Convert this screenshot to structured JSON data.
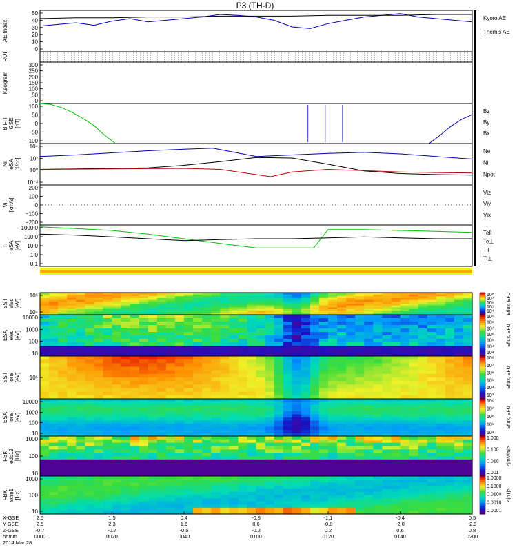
{
  "title": "P3 (TH-D)",
  "footer": {
    "row_labels": [
      "X-GSE",
      "Y-GSE",
      "Z-GSE",
      "hhmm",
      "2014 Mar 28"
    ],
    "ticks": [
      {
        "x": "2.5",
        "y": "2.5",
        "z": "-0.7",
        "t": "0000"
      },
      {
        "x": "1.5",
        "y": "2.3",
        "z": "-0.7",
        "t": "0020"
      },
      {
        "x": "0.4",
        "y": "1.6",
        "z": "-0.5",
        "t": "0040"
      },
      {
        "x": "-0.8",
        "y": "0.6",
        "z": "-0.2",
        "t": "0100"
      },
      {
        "x": "-1.1",
        "y": "-0.8",
        "z": "0.2",
        "t": "0120"
      },
      {
        "x": "-0.4",
        "y": "-2.0",
        "z": "0.6",
        "t": "0140"
      },
      {
        "x": "0.5",
        "y": "-2.9",
        "z": "0.8",
        "t": "0200"
      }
    ]
  },
  "panels": [
    {
      "id": "ae",
      "ylabel": [
        "AE Index"
      ],
      "yticks": [
        "50",
        "40",
        "30",
        "20",
        "10",
        "0"
      ],
      "legend": [
        {
          "text": "Kyoto AE",
          "color": "#0000b0"
        },
        {
          "text": "Themis AE",
          "color": "#000000"
        }
      ]
    },
    {
      "id": "roi",
      "ylabel": [
        "ROI"
      ],
      "yticks": [],
      "legend": []
    },
    {
      "id": "keogram",
      "ylabel": [
        "Keogram"
      ],
      "yticks": [
        "300",
        "250",
        "200",
        "150",
        "100",
        "50",
        "0"
      ],
      "legend": []
    },
    {
      "id": "bfit",
      "ylabel": [
        "B FIT",
        "GSE",
        "[nT]"
      ],
      "yticks": [
        "100",
        "50",
        "0",
        "−50",
        "−100"
      ],
      "legend": [
        {
          "text": "Bz",
          "color": "#c00000"
        },
        {
          "text": "By",
          "color": "#00c000"
        },
        {
          "text": "Bx",
          "color": "#0000b0"
        }
      ]
    },
    {
      "id": "ni",
      "ylabel": [
        "Ni",
        "eSA",
        "[1/cc]"
      ],
      "yticks": [
        "10⁴",
        "10²",
        "10⁰",
        "10⁻²"
      ],
      "legend": [
        {
          "text": "Ne",
          "color": "#c00000"
        },
        {
          "text": "Ni",
          "color": "#000000"
        },
        {
          "text": "Npot",
          "color": "#0000b0"
        }
      ]
    },
    {
      "id": "vi",
      "ylabel": [
        "Vi",
        "[km/s]"
      ],
      "yticks": [
        "200",
        "100",
        "0",
        "−100",
        "−200"
      ],
      "legend": [
        {
          "text": "Viz",
          "color": "#c00000"
        },
        {
          "text": "Viy",
          "color": "#00c000"
        },
        {
          "text": "Vix",
          "color": "#0000b0"
        }
      ]
    },
    {
      "id": "ti",
      "ylabel": [
        "Ti",
        "eSA",
        "[eV]"
      ],
      "yticks": [
        "1000.0",
        "100.0",
        "10.0",
        "1.0",
        "0.1"
      ],
      "legend": [
        {
          "text": "Tell",
          "color": "#000000"
        },
        {
          "text": "Te⊥",
          "color": "#c00000"
        },
        {
          "text": "Til",
          "color": "#00c000"
        },
        {
          "text": "Ti⊥",
          "color": "#0000b0"
        }
      ]
    },
    {
      "id": "sste",
      "ylabel": [
        "SST",
        "elec",
        "[eV]"
      ],
      "yticks": [
        "10⁵",
        "10⁴"
      ],
      "cbar": {
        "label": "Eflux, EFU",
        "ticks": [
          "10⁸",
          "10⁷",
          "10⁶",
          "10⁵",
          "10⁴"
        ]
      }
    },
    {
      "id": "esae",
      "ylabel": [
        "ESA",
        "elec",
        "[eV]"
      ],
      "yticks": [
        "10000",
        "1000",
        "100",
        "10"
      ],
      "cbar": {
        "label": "Eflux, EFU",
        "ticks": [
          "10⁹",
          "10⁸",
          "10⁷",
          "10⁶",
          "10⁵",
          "10⁴",
          "10³"
        ]
      }
    },
    {
      "id": "ssti",
      "ylabel": [
        "SST",
        "ions",
        "[eV]"
      ],
      "yticks": [
        "10⁵"
      ],
      "cbar": {
        "label": "Eflux, EFU",
        "ticks": [
          "10⁸",
          "10⁷",
          "10⁶",
          "10⁵",
          "10⁴",
          "10³"
        ]
      }
    },
    {
      "id": "esai",
      "ylabel": [
        "ESA",
        "ions",
        "[eV]"
      ],
      "yticks": [
        "10000",
        "1000",
        "100",
        "10"
      ],
      "cbar": {
        "label": "Eflux, EFU",
        "ticks": [
          "10⁸",
          "10⁷",
          "10⁶",
          "10⁵",
          "10⁴"
        ]
      }
    },
    {
      "id": "fbke",
      "ylabel": [
        "FBK",
        "edc12",
        "[Hz]"
      ],
      "yticks": [
        "1000",
        "100",
        "10"
      ],
      "cbar": {
        "label": "<|mV/m|>",
        "ticks": [
          "1.000",
          "0.100",
          "0.010",
          "0.001"
        ]
      }
    },
    {
      "id": "fbkb",
      "ylabel": [
        "FBK",
        "scm1",
        "[Hz]"
      ],
      "yticks": [
        "1000",
        "100",
        "10"
      ],
      "cbar": {
        "label": "<|nT|>",
        "ticks": [
          "1.0000",
          "0.1000",
          "0.0100",
          "0.0010",
          "0.0001"
        ]
      }
    }
  ],
  "chart_data": {
    "type": "line",
    "title": "P3 (TH-D)",
    "x_ticks": [
      "0000",
      "0020",
      "0040",
      "0100",
      "0120",
      "0140",
      "0200"
    ],
    "xlim_minutes": [
      0,
      120
    ],
    "series": [
      {
        "panel": "ae",
        "name": "Kyoto AE",
        "color": "#0000b0",
        "x": [
          0,
          5,
          10,
          15,
          20,
          25,
          30,
          35,
          40,
          45,
          50,
          55,
          60,
          65,
          70,
          75,
          80,
          85,
          90,
          95,
          100,
          105,
          110,
          115,
          120
        ],
        "y": [
          31,
          33,
          35,
          32,
          37,
          40,
          36,
          38,
          40,
          42,
          45,
          44,
          42,
          38,
          30,
          28,
          34,
          38,
          42,
          44,
          46,
          42,
          40,
          38,
          36
        ]
      },
      {
        "panel": "ae",
        "name": "Themis AE",
        "color": "#000000",
        "x": [
          0,
          10,
          20,
          30,
          40,
          50,
          60,
          70,
          80,
          90,
          100,
          110,
          120
        ],
        "y": [
          40,
          41,
          41,
          42,
          42,
          43,
          43,
          43,
          44,
          44,
          44,
          45,
          45
        ]
      },
      {
        "panel": "bfit",
        "name": "By",
        "color": "#00c000",
        "x": [
          0,
          3,
          6,
          9,
          12,
          15,
          18,
          21
        ],
        "y": [
          100,
          95,
          80,
          55,
          25,
          -10,
          -60,
          -100
        ]
      },
      {
        "panel": "bfit",
        "name": "Bx",
        "color": "#0000b0",
        "x": [
          108,
          111,
          114,
          117,
          120
        ],
        "y": [
          -100,
          -60,
          -15,
          20,
          45
        ]
      },
      {
        "panel": "ni",
        "name": "Npot",
        "color": "#0000b0",
        "x": [
          0,
          10,
          20,
          30,
          40,
          48,
          60,
          70,
          80,
          90,
          100,
          110,
          120
        ],
        "y": [
          2.5,
          2.8,
          3.2,
          3.6,
          3.9,
          4.1,
          2.5,
          2.8,
          3.1,
          3.3,
          3.0,
          2.5,
          2.0
        ]
      },
      {
        "panel": "ni",
        "name": "Ni",
        "color": "#000000",
        "x": [
          0,
          10,
          20,
          30,
          40,
          50,
          60,
          70,
          80,
          90,
          100,
          110,
          120
        ],
        "y": [
          0,
          0.1,
          0.2,
          0.3,
          0.8,
          1.5,
          2.3,
          2.2,
          1.0,
          -0.3,
          -0.8,
          -1.0,
          -1.1
        ]
      },
      {
        "panel": "ni",
        "name": "Ne",
        "color": "#c00000",
        "x": [
          0,
          20,
          40,
          50,
          60,
          64,
          70,
          80,
          100,
          120
        ],
        "y": [
          0,
          0.1,
          0.2,
          0.0,
          -1.0,
          -1.4,
          -0.5,
          0.0,
          -0.5,
          -0.7
        ]
      },
      {
        "panel": "ti",
        "name": "Til",
        "color": "#00c000",
        "x": [
          0,
          10,
          20,
          30,
          40,
          50,
          60,
          70,
          76,
          80,
          90,
          100,
          110,
          120
        ],
        "y": [
          3.3,
          3.1,
          2.9,
          2.5,
          2.0,
          1.5,
          1.0,
          1.0,
          1.0,
          3.0,
          3.0,
          2.9,
          2.8,
          2.7
        ]
      },
      {
        "panel": "ti",
        "name": "Tell",
        "color": "#000000",
        "x": [
          0,
          10,
          20,
          30,
          40,
          50,
          60,
          70,
          80,
          90,
          100,
          110,
          120
        ],
        "y": [
          2.5,
          2.4,
          2.2,
          2.0,
          1.8,
          1.9,
          2.0,
          2.0,
          2.1,
          2.2,
          2.1,
          2.0,
          2.0
        ]
      }
    ]
  }
}
